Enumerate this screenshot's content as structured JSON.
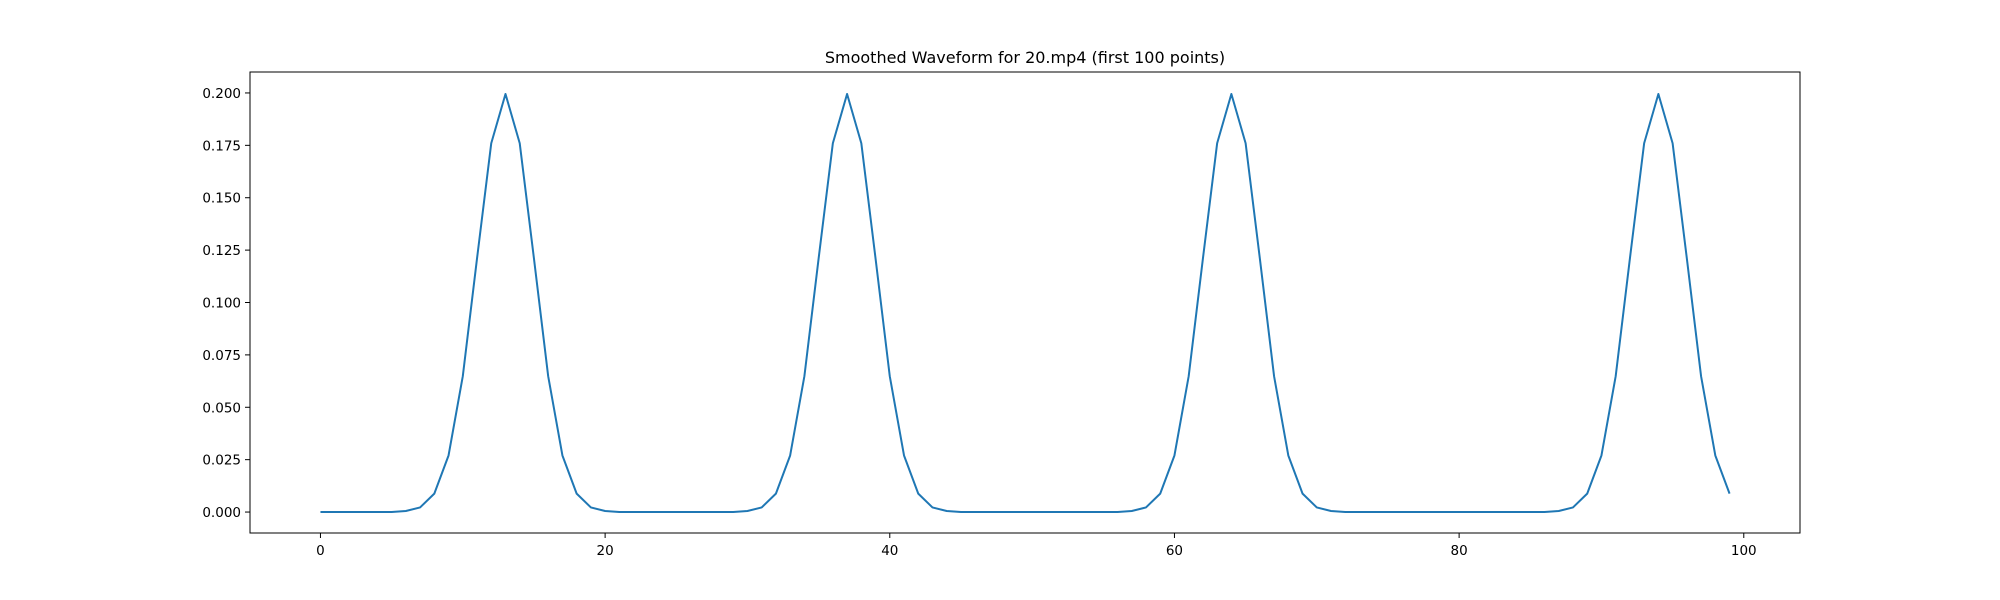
{
  "chart_data": {
    "type": "line",
    "title": "Smoothed Waveform for 20.mp4 (first 100 points)",
    "xlabel": "",
    "ylabel": "",
    "xlim": [
      -4.95,
      103.95
    ],
    "ylim": [
      -0.01,
      0.21
    ],
    "x_ticks": [
      0,
      20,
      40,
      60,
      80,
      100
    ],
    "x_tick_labels": [
      "0",
      "20",
      "40",
      "60",
      "80",
      "100"
    ],
    "y_ticks": [
      0.0,
      0.025,
      0.05,
      0.075,
      0.1,
      0.125,
      0.15,
      0.175,
      0.2
    ],
    "y_tick_labels": [
      "0.000",
      "0.025",
      "0.050",
      "0.075",
      "0.100",
      "0.125",
      "0.150",
      "0.175",
      "0.200"
    ],
    "grid": false,
    "legend": "none",
    "series": [
      {
        "color": "#1f77b4",
        "x": [
          0,
          1,
          2,
          3,
          4,
          5,
          6,
          7,
          8,
          9,
          10,
          11,
          12,
          13,
          14,
          15,
          16,
          17,
          18,
          19,
          20,
          21,
          22,
          23,
          24,
          25,
          26,
          27,
          28,
          29,
          30,
          31,
          32,
          33,
          34,
          35,
          36,
          37,
          38,
          39,
          40,
          41,
          42,
          43,
          44,
          45,
          46,
          47,
          48,
          49,
          50,
          51,
          52,
          53,
          54,
          55,
          56,
          57,
          58,
          59,
          60,
          61,
          62,
          63,
          64,
          65,
          66,
          67,
          68,
          69,
          70,
          71,
          72,
          73,
          74,
          75,
          76,
          77,
          78,
          79,
          80,
          81,
          82,
          83,
          84,
          85,
          86,
          87,
          88,
          89,
          90,
          91,
          92,
          93,
          94,
          95,
          96,
          97,
          98,
          99
        ],
        "y": [
          0.0,
          0.0,
          0.0,
          0.0,
          0.0,
          0.0,
          0.0005,
          0.0022,
          0.0088,
          0.027,
          0.0648,
          0.121,
          0.176,
          0.1995,
          0.176,
          0.121,
          0.0648,
          0.027,
          0.0088,
          0.0022,
          0.0005,
          0.0,
          0.0,
          0.0,
          0.0,
          0.0,
          0.0,
          0.0,
          0.0,
          0.0,
          0.0005,
          0.0022,
          0.0088,
          0.027,
          0.0648,
          0.121,
          0.176,
          0.1995,
          0.176,
          0.121,
          0.0648,
          0.027,
          0.0088,
          0.0022,
          0.0005,
          0.0,
          0.0,
          0.0,
          0.0,
          0.0,
          0.0,
          0.0,
          0.0,
          0.0,
          0.0,
          0.0,
          0.0,
          0.0005,
          0.0022,
          0.0088,
          0.027,
          0.0648,
          0.121,
          0.176,
          0.1995,
          0.176,
          0.121,
          0.0648,
          0.027,
          0.0088,
          0.0022,
          0.0005,
          0.0,
          0.0,
          0.0,
          0.0,
          0.0,
          0.0,
          0.0,
          0.0,
          0.0,
          0.0,
          0.0,
          0.0,
          0.0,
          0.0,
          0.0,
          0.0005,
          0.0022,
          0.0088,
          0.027,
          0.0648,
          0.121,
          0.176,
          0.1995,
          0.176,
          0.121,
          0.0648,
          0.027,
          0.0088
        ]
      }
    ]
  }
}
